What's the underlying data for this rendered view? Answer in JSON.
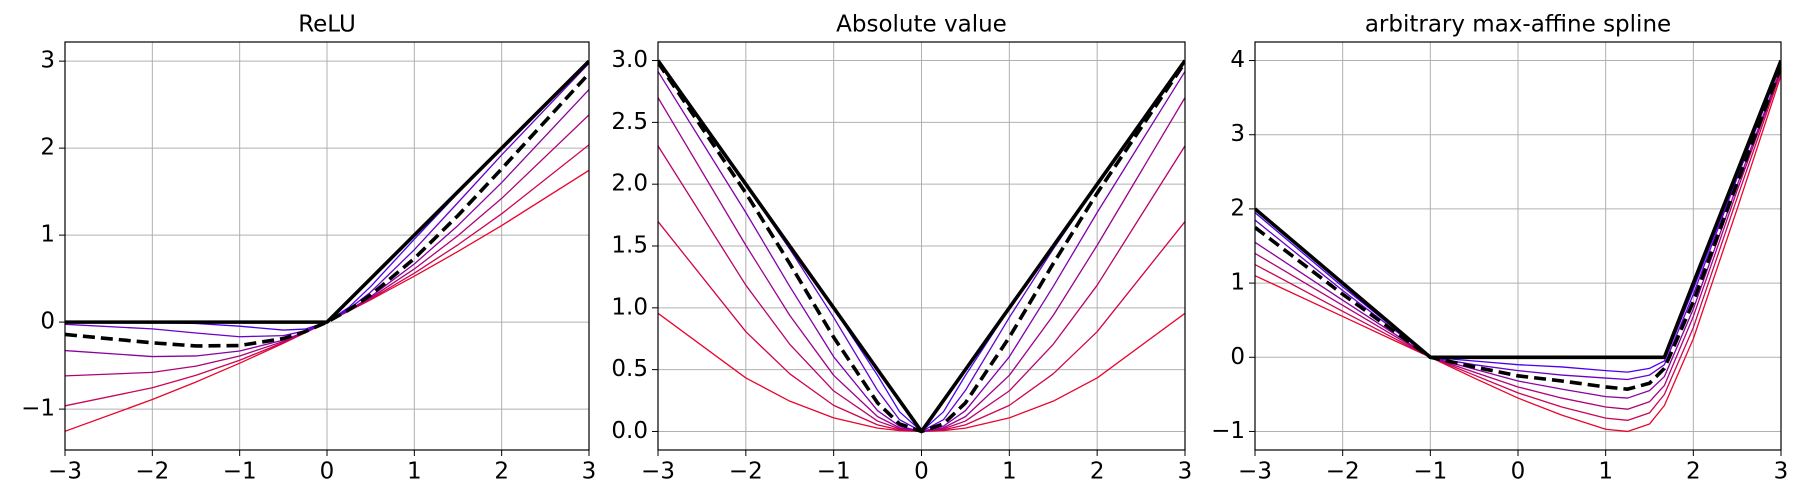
{
  "chart_data": [
    {
      "type": "line",
      "title": "ReLU",
      "x": [
        -3,
        -2,
        -1.5,
        -1,
        -0.5,
        -0.25,
        0,
        0.25,
        0.5,
        1,
        1.5,
        2,
        3
      ],
      "series": [
        {
          "color": "#e8062c",
          "linestyle": "solid",
          "linewidth": 1.3,
          "values": [
            -1.255,
            -0.89,
            -0.688,
            -0.472,
            -0.243,
            -0.123,
            0,
            0.127,
            0.257,
            0.528,
            0.812,
            1.11,
            1.745
          ]
        },
        {
          "color": "#cc0454",
          "linestyle": "solid",
          "linewidth": 1.3,
          "values": [
            -0.962,
            -0.755,
            -0.611,
            -0.438,
            -0.234,
            -0.121,
            0,
            0.129,
            0.266,
            0.562,
            0.889,
            1.245,
            2.038
          ]
        },
        {
          "color": "#ac0378",
          "linestyle": "solid",
          "linewidth": 1.3,
          "values": [
            -0.618,
            -0.578,
            -0.506,
            -0.389,
            -0.222,
            -0.118,
            0,
            0.132,
            0.278,
            0.611,
            0.994,
            1.422,
            2.382
          ]
        },
        {
          "color": "#8a02a0",
          "linestyle": "solid",
          "linewidth": 1.3,
          "values": [
            -0.327,
            -0.396,
            -0.389,
            -0.332,
            -0.207,
            -0.114,
            0,
            0.136,
            0.293,
            0.668,
            1.111,
            1.604,
            2.673
          ]
        },
        {
          "color": "#6a01cc",
          "linestyle": "solid",
          "linewidth": 1.3,
          "values": [
            -0.025,
            -0.078,
            -0.125,
            -0.168,
            -0.155,
            -0.1,
            0,
            0.15,
            0.345,
            0.832,
            1.375,
            1.922,
            2.975
          ]
        },
        {
          "color": "#4a00f0",
          "linestyle": "solid",
          "linewidth": 1.3,
          "values": [
            0,
            -0.005,
            -0.016,
            -0.047,
            -0.091,
            -0.08,
            0,
            0.17,
            0.409,
            0.953,
            1.484,
            1.995,
            3
          ]
        },
        {
          "color": "#000000",
          "linestyle": "solid",
          "linewidth": 3.6,
          "values": [
            0,
            0,
            0,
            0,
            0,
            0,
            0,
            0.25,
            0.5,
            1,
            1.5,
            2,
            3
          ]
        },
        {
          "color": "#000000",
          "linestyle": "dashed",
          "linewidth": 3.6,
          "values": [
            -0.142,
            -0.238,
            -0.274,
            -0.269,
            -0.189,
            -0.109,
            0,
            0.141,
            0.311,
            0.731,
            1.226,
            1.762,
            2.858
          ]
        }
      ],
      "xlim": [
        -3,
        3
      ],
      "ylim": [
        -1.47,
        3.22
      ],
      "xticks": [
        {
          "value": -3,
          "label": "−3"
        },
        {
          "value": -2,
          "label": "−2"
        },
        {
          "value": -1,
          "label": "−1"
        },
        0,
        1,
        2,
        3
      ],
      "yticks": [
        {
          "value": -1,
          "label": "−1"
        },
        0,
        1,
        2,
        3
      ],
      "grid": true
    },
    {
      "type": "line",
      "title": "Absolute value",
      "x": [
        -3,
        -2,
        -1.5,
        -1,
        -0.5,
        -0.25,
        0,
        0.25,
        0.5,
        1,
        1.5,
        2,
        3
      ],
      "series": [
        {
          "color": "#e8062c",
          "linestyle": "solid",
          "linewidth": 1.3,
          "values": [
            0.956,
            0.433,
            0.245,
            0.11,
            0.027,
            0.007,
            0,
            0.007,
            0.027,
            0.11,
            0.245,
            0.433,
            0.956
          ]
        },
        {
          "color": "#d0044e",
          "linestyle": "solid",
          "linewidth": 1.3,
          "values": [
            1.698,
            0.807,
            0.466,
            0.211,
            0.053,
            0.013,
            0,
            0.013,
            0.053,
            0.211,
            0.466,
            0.807,
            1.698
          ]
        },
        {
          "color": "#b8036c",
          "linestyle": "solid",
          "linewidth": 1.3,
          "values": [
            2.31,
            1.183,
            0.705,
            0.328,
            0.084,
            0.021,
            0,
            0.021,
            0.084,
            0.328,
            0.705,
            1.183,
            2.31
          ]
        },
        {
          "color": "#9c028c",
          "linestyle": "solid",
          "linewidth": 1.3,
          "values": [
            2.7,
            1.506,
            0.939,
            0.454,
            0.12,
            0.03,
            0,
            0.03,
            0.12,
            0.454,
            0.939,
            1.506,
            2.7
          ]
        },
        {
          "color": "#8001ae",
          "linestyle": "solid",
          "linewidth": 1.3,
          "values": [
            2.912,
            1.771,
            1.173,
            0.604,
            0.168,
            0.043,
            0,
            0.043,
            0.168,
            0.604,
            1.173,
            1.771,
            2.912
          ]
        },
        {
          "color": "#6400d0",
          "linestyle": "solid",
          "linewidth": 1.3,
          "values": [
            3,
            1.993,
            1.476,
            0.922,
            0.332,
            0.095,
            0,
            0.095,
            0.332,
            0.922,
            1.476,
            1.993,
            3
          ]
        },
        {
          "color": "#4a00f0",
          "linestyle": "solid",
          "linewidth": 1.3,
          "values": [
            3,
            2,
            1.5,
            0.995,
            0.453,
            0.159,
            0,
            0.159,
            0.453,
            0.995,
            1.5,
            2,
            3
          ]
        },
        {
          "color": "#000000",
          "linestyle": "solid",
          "linewidth": 3.6,
          "values": [
            3,
            2,
            1.5,
            1,
            0.5,
            0.25,
            0,
            0.25,
            0.5,
            1,
            1.5,
            2,
            3
          ]
        },
        {
          "color": "#000000",
          "linestyle": "dashed",
          "linewidth": 3.6,
          "values": [
            2.985,
            1.928,
            1.358,
            0.762,
            0.231,
            0.061,
            0,
            0.061,
            0.231,
            0.762,
            1.358,
            1.928,
            2.985
          ]
        }
      ],
      "xlim": [
        -3,
        3
      ],
      "ylim": [
        -0.15,
        3.15
      ],
      "xticks": [
        {
          "value": -3,
          "label": "−3"
        },
        {
          "value": -2,
          "label": "−2"
        },
        {
          "value": -1,
          "label": "−1"
        },
        0,
        1,
        2,
        3
      ],
      "yticks": [
        {
          "value": 0,
          "label": "0.0"
        },
        {
          "value": 0.5,
          "label": "0.5"
        },
        {
          "value": 1,
          "label": "1.0"
        },
        {
          "value": 1.5,
          "label": "1.5"
        },
        {
          "value": 2,
          "label": "2.0"
        },
        {
          "value": 2.5,
          "label": "2.5"
        },
        {
          "value": 3,
          "label": "3.0"
        }
      ],
      "grid": true
    },
    {
      "type": "line",
      "title": "arbitrary max-affine spline",
      "x": [
        -3,
        -2,
        -1,
        -0.5,
        0,
        0.5,
        1,
        1.25,
        1.5,
        1.67,
        2,
        2.5,
        3
      ],
      "series": [
        {
          "color": "#e8062c",
          "linestyle": "solid",
          "linewidth": 1.3,
          "values": [
            1.1,
            0.55,
            0,
            -0.28,
            -0.55,
            -0.78,
            -0.97,
            -1.0,
            -0.9,
            -0.65,
            0.25,
            2.0,
            3.8
          ]
        },
        {
          "color": "#cc0454",
          "linestyle": "solid",
          "linewidth": 1.3,
          "values": [
            1.25,
            0.62,
            0,
            -0.24,
            -0.48,
            -0.67,
            -0.82,
            -0.85,
            -0.75,
            -0.5,
            0.4,
            2.15,
            3.85
          ]
        },
        {
          "color": "#ac0378",
          "linestyle": "solid",
          "linewidth": 1.3,
          "values": [
            1.4,
            0.7,
            0,
            -0.2,
            -0.4,
            -0.55,
            -0.67,
            -0.7,
            -0.6,
            -0.38,
            0.55,
            2.25,
            3.88
          ]
        },
        {
          "color": "#8a02a0",
          "linestyle": "solid",
          "linewidth": 1.3,
          "values": [
            1.55,
            0.77,
            0,
            -0.16,
            -0.32,
            -0.43,
            -0.53,
            -0.55,
            -0.45,
            -0.26,
            0.65,
            2.32,
            3.9
          ]
        },
        {
          "color": "#6a01cc",
          "linestyle": "solid",
          "linewidth": 1.3,
          "values": [
            1.85,
            0.9,
            0,
            -0.1,
            -0.18,
            -0.24,
            -0.28,
            -0.3,
            -0.24,
            -0.1,
            0.85,
            2.42,
            3.95
          ]
        },
        {
          "color": "#4a00f0",
          "linestyle": "solid",
          "linewidth": 1.3,
          "values": [
            1.95,
            0.95,
            0,
            -0.05,
            -0.1,
            -0.13,
            -0.18,
            -0.2,
            -0.15,
            -0.05,
            0.92,
            2.45,
            3.97
          ]
        },
        {
          "color": "#000000",
          "linestyle": "solid",
          "linewidth": 3.6,
          "values": [
            2,
            1,
            0,
            0,
            0,
            0,
            0,
            0,
            0,
            0,
            1,
            2.5,
            4
          ]
        },
        {
          "color": "#000000",
          "linestyle": "dashed",
          "linewidth": 3.6,
          "values": [
            1.75,
            0.85,
            0,
            -0.13,
            -0.25,
            -0.32,
            -0.4,
            -0.43,
            -0.35,
            -0.15,
            0.75,
            2.35,
            3.92
          ]
        }
      ],
      "xlim": [
        -3,
        3
      ],
      "ylim": [
        -1.25,
        4.25
      ],
      "xticks": [
        {
          "value": -3,
          "label": "−3"
        },
        {
          "value": -2,
          "label": "−2"
        },
        {
          "value": -1,
          "label": "−1"
        },
        0,
        1,
        2,
        3
      ],
      "yticks": [
        {
          "value": -1,
          "label": "−1"
        },
        0,
        1,
        2,
        3,
        4
      ],
      "grid": true
    }
  ]
}
